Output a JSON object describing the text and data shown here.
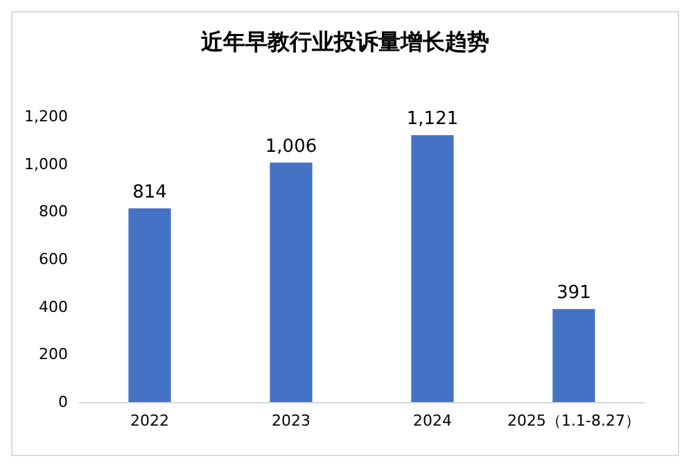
{
  "chart_data": {
    "type": "bar",
    "title": "近年早教行业投诉量增长趋势",
    "categories": [
      "2022",
      "2023",
      "2024",
      "2025（1.1-8.27）"
    ],
    "values": [
      814,
      1006,
      1121,
      391
    ],
    "value_labels": [
      "814",
      "1,006",
      "1,121",
      "391"
    ],
    "color": "#4472c4",
    "ylim": [
      0,
      1200
    ],
    "yticks": [
      0,
      200,
      400,
      600,
      800,
      {
        "value": 1000,
        "label": "1,000"
      },
      {
        "value": 1200,
        "label": "1,200"
      }
    ],
    "grid": false
  }
}
